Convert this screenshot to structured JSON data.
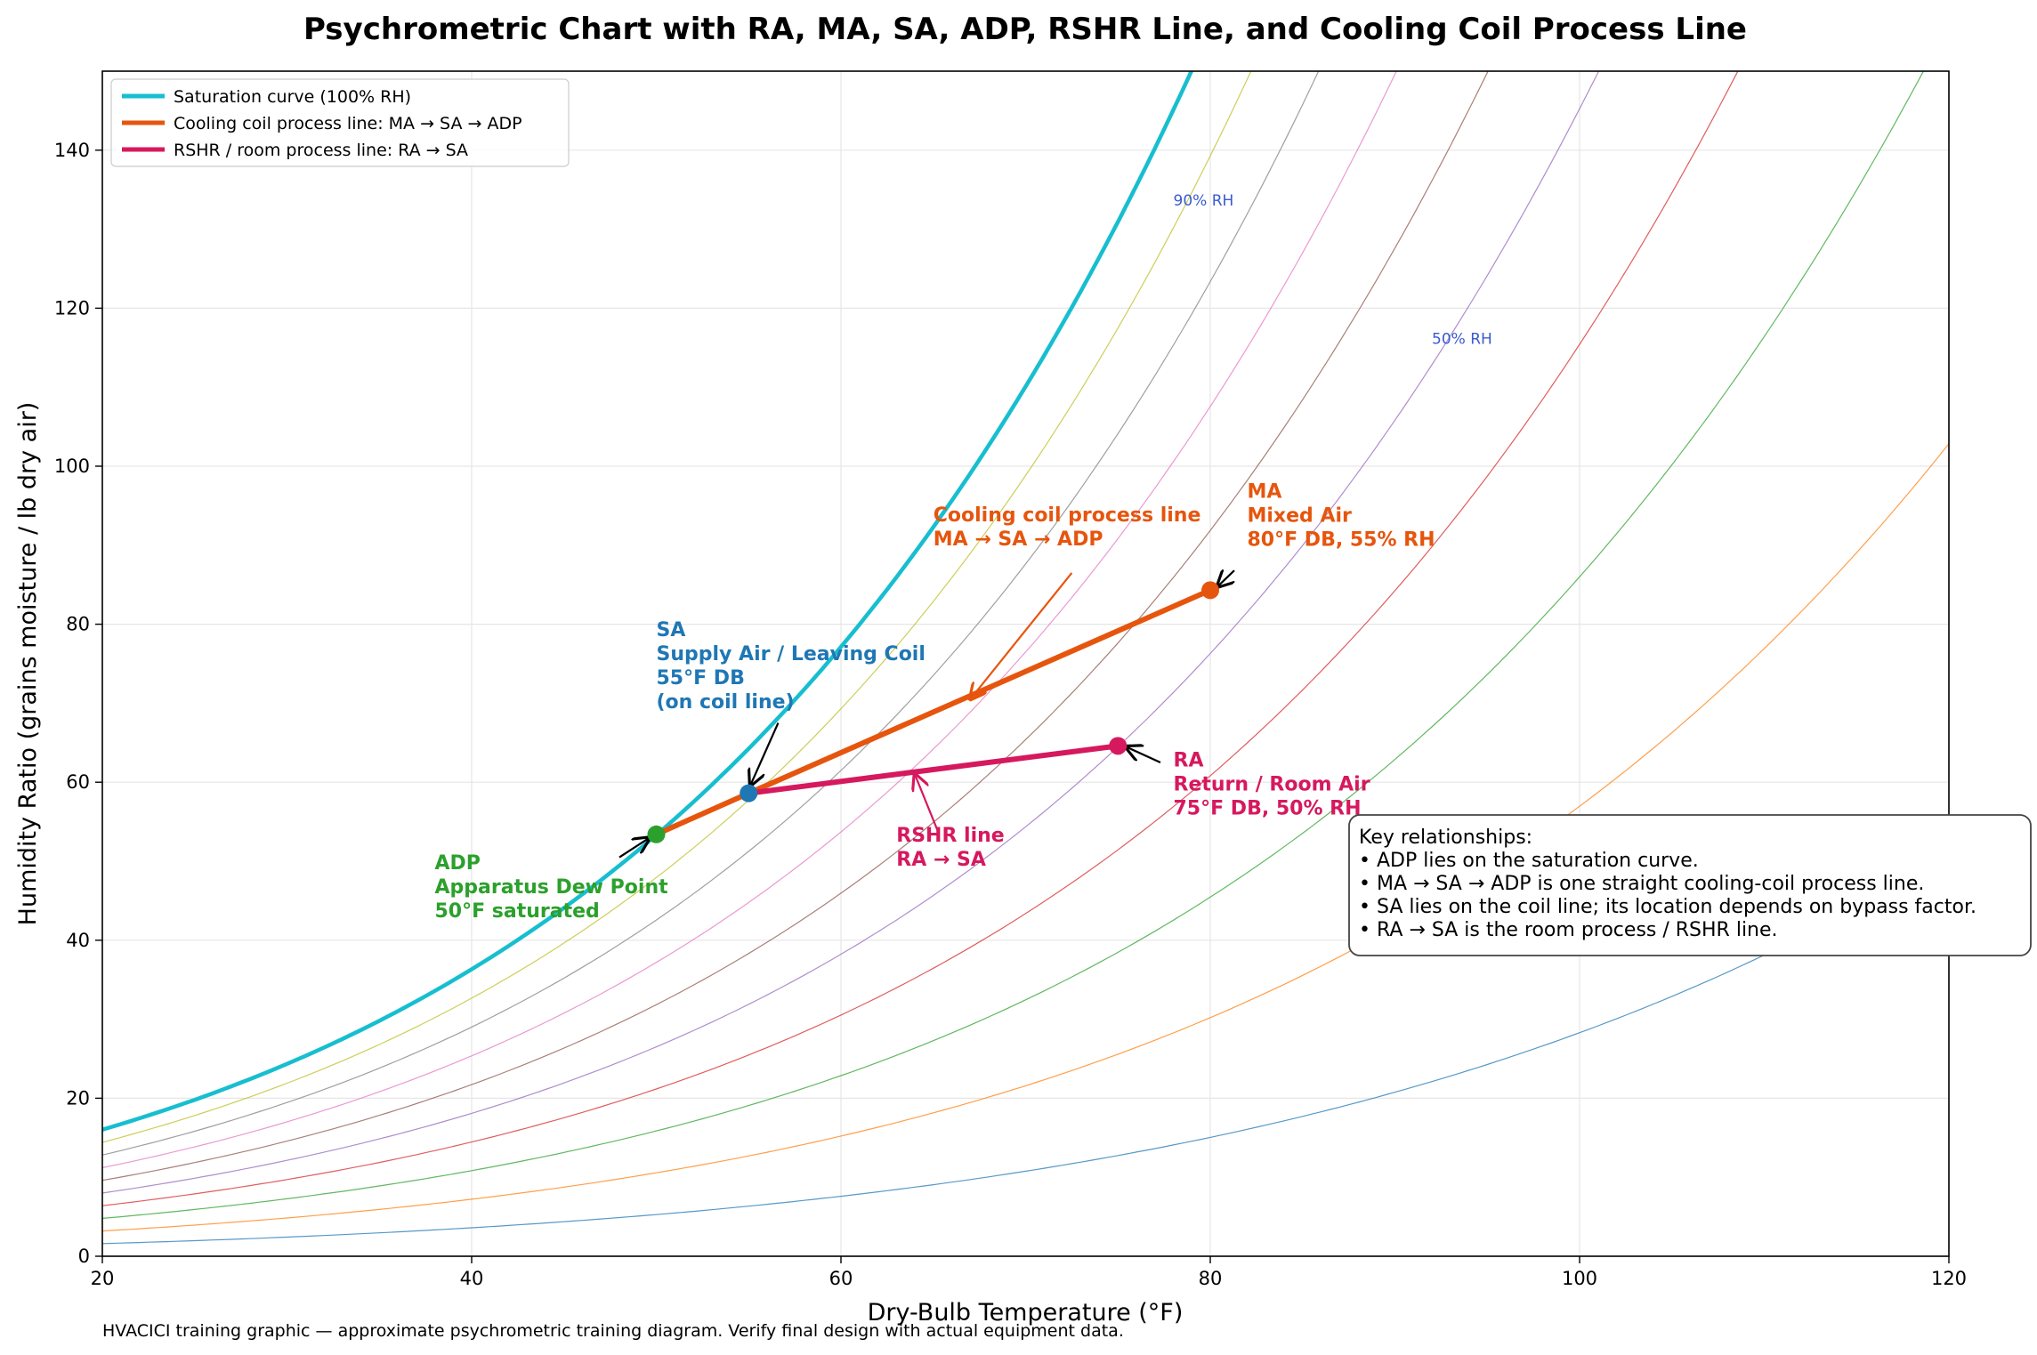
{
  "chart_data": {
    "type": "line",
    "title": "Psychrometric Chart with RA, MA, SA, ADP, RSHR Line, and Cooling Coil Process Line",
    "xlabel": "Dry-Bulb Temperature (°F)",
    "ylabel": "Humidity Ratio (grains moisture / lb dry air)",
    "xlim": [
      20,
      120
    ],
    "ylim": [
      0,
      150
    ],
    "xticks": [
      20,
      40,
      60,
      80,
      100,
      120
    ],
    "yticks": [
      0,
      20,
      40,
      60,
      80,
      100,
      120,
      140
    ],
    "grid": true,
    "legend_position": "top-left",
    "colors": {
      "saturation": "#17becf",
      "coil": "#e6550d",
      "rshr": "#d6185e",
      "sa": "#1f77b4",
      "adp": "#2ca02c",
      "rh_label": "#3a5bd0"
    },
    "rh_curves": [
      {
        "rh": 10,
        "color": "#1f77b4"
      },
      {
        "rh": 20,
        "color": "#ff7f0e"
      },
      {
        "rh": 30,
        "color": "#2ca02c"
      },
      {
        "rh": 40,
        "color": "#d62728"
      },
      {
        "rh": 50,
        "color": "#9467bd"
      },
      {
        "rh": 60,
        "color": "#8c564b"
      },
      {
        "rh": 70,
        "color": "#e377c2"
      },
      {
        "rh": 80,
        "color": "#7f7f7f"
      },
      {
        "rh": 90,
        "color": "#bcbd22"
      }
    ],
    "rh_labels": [
      {
        "text": "90% RH",
        "x": 78,
        "y": 133
      },
      {
        "text": "50% RH",
        "x": 92,
        "y": 115.5
      }
    ],
    "series": [
      {
        "name": "Saturation curve (100% RH)",
        "rh": 100
      },
      {
        "name": "Cooling coil process line: MA → SA → ADP",
        "x": [
          80,
          55,
          50
        ],
        "y": [
          84.3,
          58.6,
          53.4
        ]
      },
      {
        "name": "RSHR / room process line: RA → SA",
        "x": [
          75,
          55
        ],
        "y": [
          64.6,
          58.6
        ]
      }
    ],
    "points": [
      {
        "id": "MA",
        "x": 80,
        "y": 84.3,
        "lines": [
          "MA",
          "Mixed Air",
          "80°F DB, 55% RH"
        ],
        "label_x": 82,
        "label_y": 96
      },
      {
        "id": "SA",
        "x": 55,
        "y": 58.6,
        "lines": [
          "SA",
          "Supply Air / Leaving Coil",
          "55°F DB",
          "(on coil line)"
        ],
        "label_x": 50,
        "label_y": 78.5
      },
      {
        "id": "RA",
        "x": 75,
        "y": 64.6,
        "lines": [
          "RA",
          "Return / Room Air",
          "75°F DB, 50% RH"
        ],
        "label_x": 78,
        "label_y": 62
      },
      {
        "id": "ADP",
        "x": 50,
        "y": 53.4,
        "lines": [
          "ADP",
          "Apparatus Dew Point",
          "50°F saturated"
        ],
        "label_x": 38,
        "label_y": 49
      }
    ],
    "annotations": [
      {
        "lines": [
          "Cooling coil process line",
          "MA → SA → ADP"
        ],
        "label_x": 65,
        "label_y": 93,
        "arrow_from": [
          72.5,
          86.5
        ],
        "arrow_to": [
          67,
          70.5
        ]
      },
      {
        "lines": [
          "RSHR line",
          "RA → SA"
        ],
        "label_x": 63,
        "label_y": 52.5,
        "arrow_from": [
          65.3,
          53.5
        ],
        "arrow_to": [
          64,
          61
        ]
      }
    ],
    "key_box": {
      "title": "Key relationships:",
      "lines": [
        "• ADP lies on the saturation curve.",
        "• MA → SA → ADP is one straight cooling-coil process line.",
        "• SA lies on the coil line; its location depends on bypass factor.",
        "• RA → SA is the room process / RSHR line."
      ]
    }
  },
  "footnote": "HVACICI training graphic — approximate psychrometric training diagram. Verify final design with actual equipment data."
}
